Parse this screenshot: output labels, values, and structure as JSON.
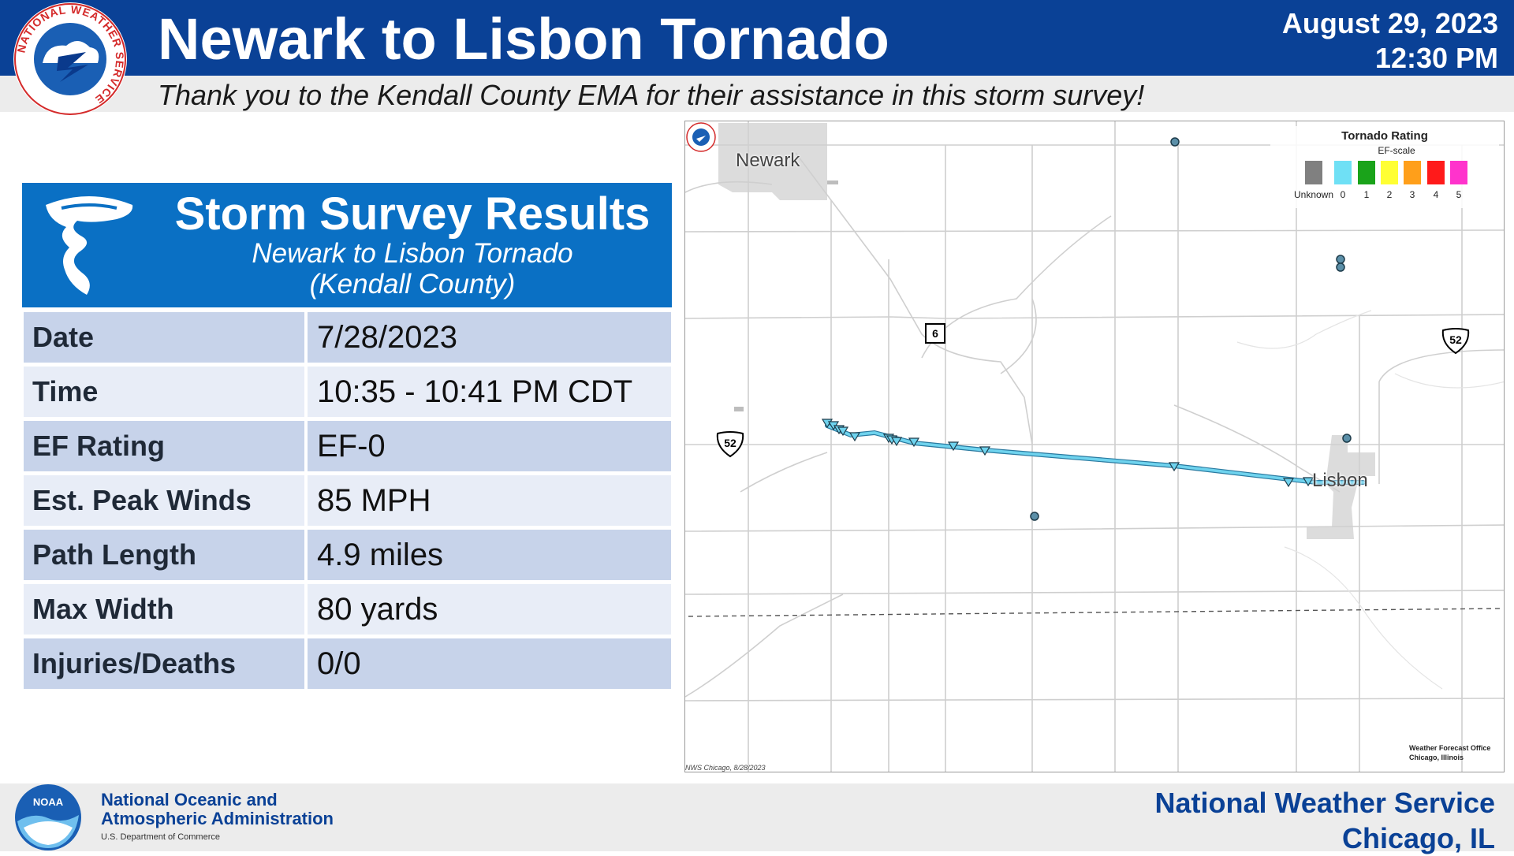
{
  "header": {
    "title": "Newark to Lisbon Tornado",
    "date": "August 29, 2023",
    "time": "12:30 PM",
    "subtitle": "Thank you to the Kendall County EMA for their assistance in this storm survey!",
    "logo_text": "NATIONAL WEATHER SERVICE"
  },
  "survey": {
    "title": "Storm Survey Results",
    "subtitle_line1": "Newark to Lisbon Tornado",
    "subtitle_line2": "(Kendall County)",
    "rows": [
      {
        "label": "Date",
        "value": "7/28/2023"
      },
      {
        "label": "Time",
        "value": "10:35 - 10:41 PM CDT"
      },
      {
        "label": "EF Rating",
        "value": "EF-0"
      },
      {
        "label": "Est. Peak Winds",
        "value": "85 MPH"
      },
      {
        "label": "Path Length",
        "value": "4.9 miles"
      },
      {
        "label": "Max Width",
        "value": "80 yards"
      },
      {
        "label": "Injuries/Deaths",
        "value": "0/0"
      }
    ]
  },
  "map": {
    "towns": {
      "newark": "Newark",
      "lisbon": "Lisbon"
    },
    "routes": {
      "route_6": "6",
      "us52_east": "52",
      "us52_west": "52"
    },
    "credit": "NWS Chicago, 8/28/2023",
    "wfo_line1": "Weather Forecast Office",
    "wfo_line2": "Chicago, Illinois",
    "legend": {
      "title": "Tornado Rating",
      "subtitle": "EF-scale",
      "items": [
        {
          "label": "Unknown",
          "color": "#808080"
        },
        {
          "label": "0",
          "color": "#6fe0f5"
        },
        {
          "label": "1",
          "color": "#1aa31a"
        },
        {
          "label": "2",
          "color": "#ffff33"
        },
        {
          "label": "3",
          "color": "#ff9f1a"
        },
        {
          "label": "4",
          "color": "#ff1a1a"
        },
        {
          "label": "5",
          "color": "#ff33cc"
        }
      ]
    },
    "track_color": "#6fd3ee"
  },
  "footer": {
    "noaa_line1": "National Oceanic and",
    "noaa_line2": "Atmospheric Administration",
    "noaa_dept": "U.S. Department of Commerce",
    "nws_line1": "National Weather Service",
    "nws_line2": "Chicago, IL",
    "noaa_logo_text": "NOAA"
  }
}
